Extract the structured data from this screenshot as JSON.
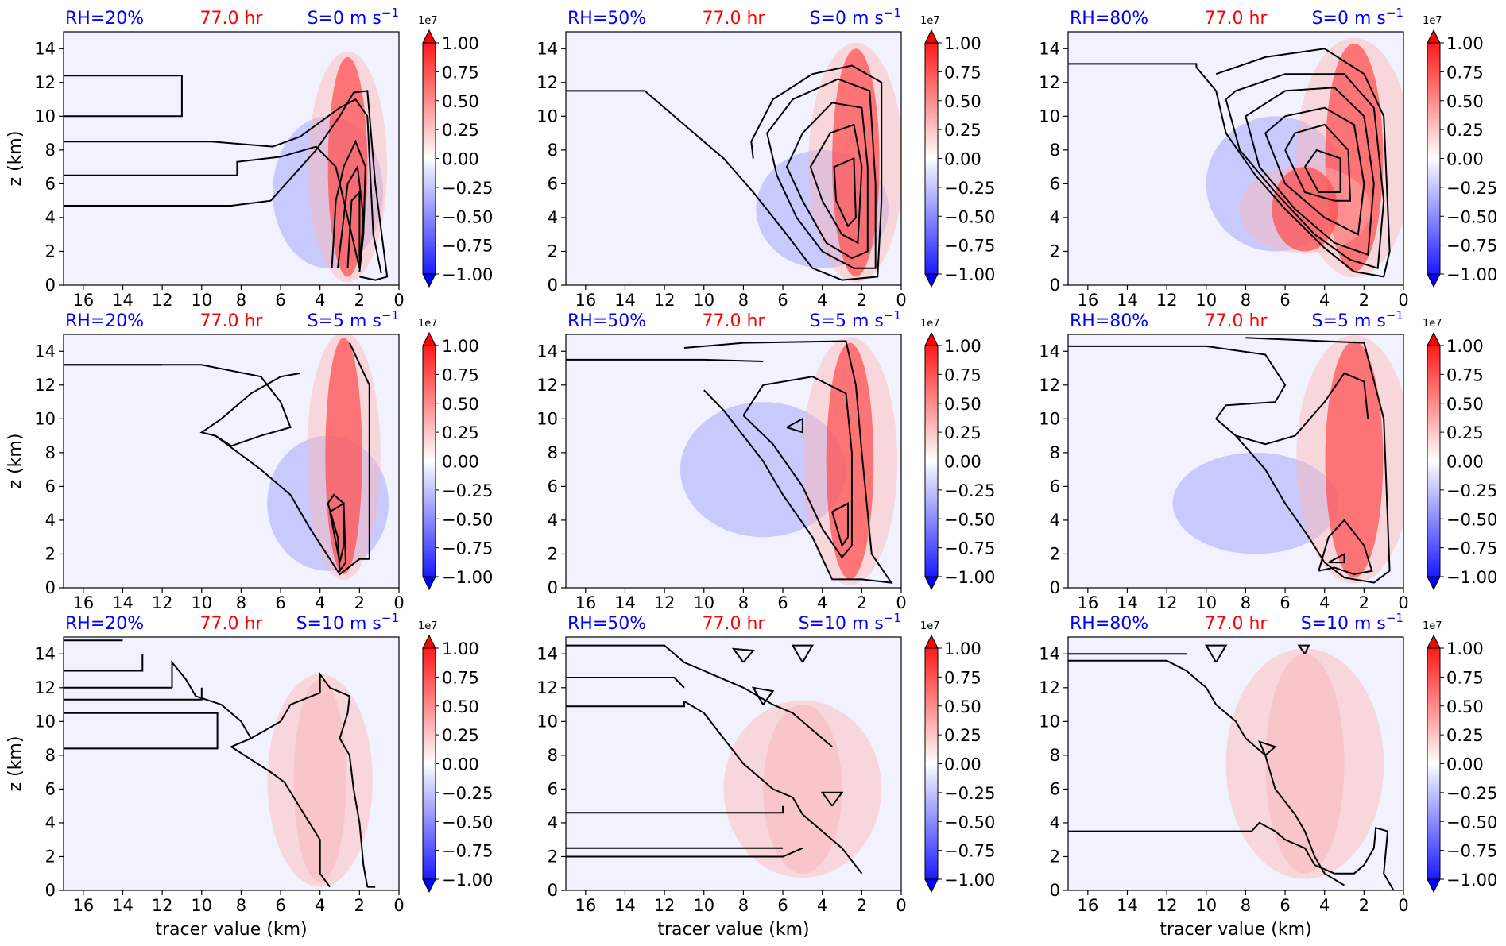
{
  "figure": {
    "ylabel": "z (km)",
    "xlabel": "tracer value (km)",
    "time_label": "77.0 hr",
    "colorbar": {
      "exponent": "1e7",
      "ticks": [
        "1.00",
        "0.75",
        "0.50",
        "0.25",
        "0.00",
        "−0.25",
        "−0.50",
        "−0.75",
        "−1.00"
      ],
      "range": [
        -1.0,
        1.0
      ],
      "colors": {
        "high": "#ff0000",
        "low": "#0000ff",
        "mid": "#ffffff"
      }
    },
    "colors": {
      "rh": "#0000ff",
      "time": "#ff0000",
      "shear": "#0000ff"
    },
    "xticks": [
      "16",
      "14",
      "12",
      "10",
      "8",
      "6",
      "4",
      "2",
      "0"
    ],
    "yticks": [
      "0",
      "2",
      "4",
      "6",
      "8",
      "10",
      "12",
      "14"
    ]
  },
  "chart_data": [
    {
      "type": "heatmap",
      "rh": "RH=20%",
      "shear": "S=0 m s",
      "shear_exp": "−1",
      "x_range": [
        17,
        0
      ],
      "y_range": [
        0,
        15
      ],
      "contours": "black",
      "fill": "red-blue anomaly"
    },
    {
      "type": "heatmap",
      "rh": "RH=50%",
      "shear": "S=0 m s",
      "shear_exp": "−1",
      "x_range": [
        17,
        0
      ],
      "y_range": [
        0,
        15
      ],
      "contours": "black",
      "fill": "red-blue anomaly"
    },
    {
      "type": "heatmap",
      "rh": "RH=80%",
      "shear": "S=0 m s",
      "shear_exp": "−1",
      "x_range": [
        17,
        0
      ],
      "y_range": [
        0,
        15
      ],
      "contours": "black",
      "fill": "red-blue anomaly"
    },
    {
      "type": "heatmap",
      "rh": "RH=20%",
      "shear": "S=5 m s",
      "shear_exp": "−1",
      "x_range": [
        17,
        0
      ],
      "y_range": [
        0,
        15
      ],
      "contours": "black",
      "fill": "red-blue anomaly"
    },
    {
      "type": "heatmap",
      "rh": "RH=50%",
      "shear": "S=5 m s",
      "shear_exp": "−1",
      "x_range": [
        17,
        0
      ],
      "y_range": [
        0,
        15
      ],
      "contours": "black",
      "fill": "red-blue anomaly"
    },
    {
      "type": "heatmap",
      "rh": "RH=80%",
      "shear": "S=5 m s",
      "shear_exp": "−1",
      "x_range": [
        17,
        0
      ],
      "y_range": [
        0,
        15
      ],
      "contours": "black",
      "fill": "red-blue anomaly"
    },
    {
      "type": "heatmap",
      "rh": "RH=20%",
      "shear": "S=10 m s",
      "shear_exp": "−1",
      "x_range": [
        17,
        0
      ],
      "y_range": [
        0,
        15
      ],
      "contours": "black",
      "fill": "red-blue anomaly"
    },
    {
      "type": "heatmap",
      "rh": "RH=50%",
      "shear": "S=10 m s",
      "shear_exp": "−1",
      "x_range": [
        17,
        0
      ],
      "y_range": [
        0,
        15
      ],
      "contours": "black",
      "fill": "red-blue anomaly"
    },
    {
      "type": "heatmap",
      "rh": "RH=80%",
      "shear": "S=10 m s",
      "shear_exp": "−1",
      "x_range": [
        17,
        0
      ],
      "y_range": [
        0,
        15
      ],
      "contours": "black",
      "fill": "red-blue anomaly"
    }
  ]
}
